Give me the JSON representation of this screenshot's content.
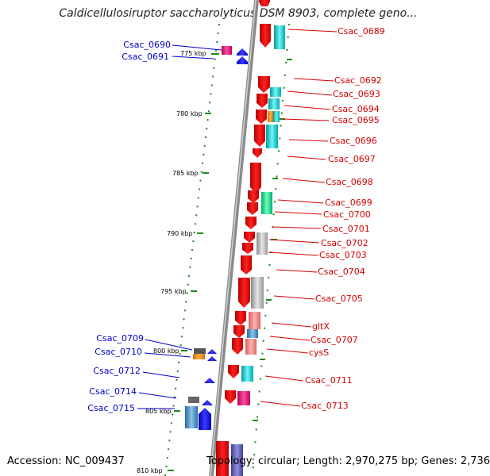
{
  "title": "Caldicellulosiruptor saccharolyticus DSM 8903, complete geno...",
  "accession": "Accession: NC_009437",
  "topology": "Topology: circular; Length: 2,970,275 bp; Genes: 2,736",
  "colors": {
    "backbone": "#888888",
    "tick": "#1a8a1a",
    "label_right": "#d40000",
    "label_left": "#0000cc",
    "forward_gene": "#ff0000",
    "reverse_gene": "#0000ff"
  },
  "ruler_labels": [
    {
      "label": "775 kbp",
      "kbp": 775
    },
    {
      "label": "780 kbp",
      "kbp": 780
    },
    {
      "label": "785 kbp",
      "kbp": 785
    },
    {
      "label": "790 kbp",
      "kbp": 790
    },
    {
      "label": "795 kbp",
      "kbp": 795
    },
    {
      "label": "800 kbp",
      "kbp": 800
    },
    {
      "label": "805 kbp",
      "kbp": 805
    },
    {
      "label": "810 kbp",
      "kbp": 810
    }
  ],
  "right_labels": [
    "Csac_0689",
    "Csac_0692",
    "Csac_0693",
    "Csac_0694",
    "Csac_0695",
    "Csac_0696",
    "Csac_0697",
    "Csac_0698",
    "Csac_0699",
    "Csac_0700",
    "Csac_0701",
    "Csac_0702",
    "Csac_0703",
    "Csac_0704",
    "Csac_0705",
    "gltX",
    "Csac_0707",
    "cysS",
    "Csac_0711",
    "Csac_0713"
  ],
  "left_labels": [
    "Csac_0690",
    "Csac_0691",
    "Csac_0709",
    "Csac_0710",
    "Csac_0712",
    "Csac_0714",
    "Csac_0715"
  ]
}
